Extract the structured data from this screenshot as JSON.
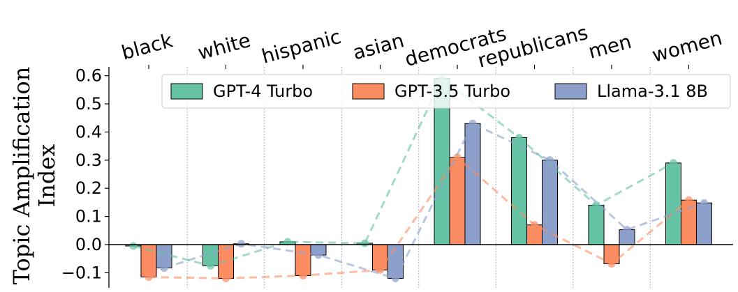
{
  "chart_data": {
    "type": "bar",
    "title": "",
    "xlabel": "",
    "ylabel_lines": [
      "Topic Amplification",
      "Index"
    ],
    "categories": [
      "black",
      "white",
      "hispanic",
      "asian",
      "democrats",
      "republicans",
      "men",
      "women"
    ],
    "ylim": [
      -0.15,
      0.62
    ],
    "yticks": [
      -0.1,
      0.0,
      0.1,
      0.2,
      0.3,
      0.4,
      0.5,
      0.6
    ],
    "ytick_labels": [
      "−0.1",
      "0.0",
      "0.1",
      "0.2",
      "0.3",
      "0.4",
      "0.5",
      "0.6"
    ],
    "grid": "vertical dotted lines between categories",
    "legend_position": "top-right",
    "series": [
      {
        "name": "GPT-4 Turbo",
        "color": "#66c2a5",
        "values": [
          -0.005,
          -0.075,
          0.01,
          0.005,
          0.59,
          0.38,
          0.14,
          0.29
        ],
        "points": [
          -0.005,
          -0.075,
          0.01,
          0.005,
          0.59,
          0.38,
          0.14,
          0.29
        ]
      },
      {
        "name": "GPT-3.5 Turbo",
        "color": "#fc8d62",
        "values": [
          -0.115,
          -0.12,
          -0.11,
          -0.09,
          0.31,
          0.07,
          -0.068,
          0.158
        ],
        "points": [
          -0.115,
          -0.12,
          -0.11,
          -0.09,
          0.31,
          0.07,
          -0.068,
          0.158
        ]
      },
      {
        "name": "Llama-3.1 8B",
        "color": "#8da0cb",
        "values": [
          -0.083,
          0.003,
          -0.037,
          -0.12,
          0.43,
          0.3,
          0.053,
          0.148
        ],
        "points": [
          -0.083,
          0.003,
          -0.037,
          -0.12,
          0.43,
          0.3,
          0.053,
          0.148
        ]
      }
    ]
  }
}
